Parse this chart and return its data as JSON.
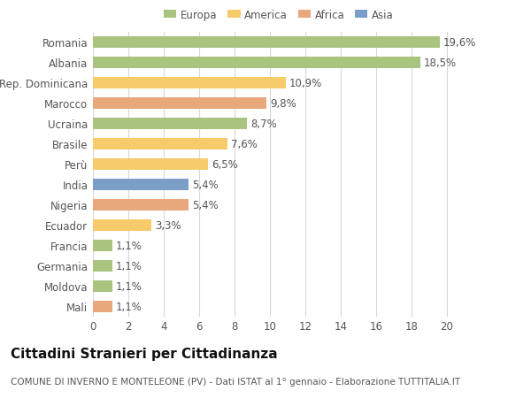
{
  "categories": [
    "Romania",
    "Albania",
    "Rep. Dominicana",
    "Marocco",
    "Ucraina",
    "Brasile",
    "Perù",
    "India",
    "Nigeria",
    "Ecuador",
    "Francia",
    "Germania",
    "Moldova",
    "Mali"
  ],
  "values": [
    19.6,
    18.5,
    10.9,
    9.8,
    8.7,
    7.6,
    6.5,
    5.4,
    5.4,
    3.3,
    1.1,
    1.1,
    1.1,
    1.1
  ],
  "labels": [
    "19,6%",
    "18,5%",
    "10,9%",
    "9,8%",
    "8,7%",
    "7,6%",
    "6,5%",
    "5,4%",
    "5,4%",
    "3,3%",
    "1,1%",
    "1,1%",
    "1,1%",
    "1,1%"
  ],
  "colors": [
    "#a8c47e",
    "#a8c47e",
    "#f7ca6a",
    "#e8a87c",
    "#a8c47e",
    "#f7ca6a",
    "#f7ca6a",
    "#7b9ec9",
    "#e8a87c",
    "#f7ca6a",
    "#a8c47e",
    "#a8c47e",
    "#a8c47e",
    "#e8a87c"
  ],
  "legend_labels": [
    "Europa",
    "America",
    "Africa",
    "Asia"
  ],
  "legend_colors": [
    "#a8c47e",
    "#f7ca6a",
    "#e8a87c",
    "#7b9ec9"
  ],
  "title": "Cittadini Stranieri per Cittadinanza",
  "subtitle": "COMUNE DI INVERNO E MONTELEONE (PV) - Dati ISTAT al 1° gennaio - Elaborazione TUTTITALIA.IT",
  "xlim": [
    0,
    21
  ],
  "xticks": [
    0,
    2,
    4,
    6,
    8,
    10,
    12,
    14,
    16,
    18,
    20
  ],
  "background_color": "#ffffff",
  "grid_color": "#d8d8d8",
  "bar_height": 0.55,
  "label_fontsize": 8.5,
  "tick_fontsize": 8.5,
  "title_fontsize": 11,
  "subtitle_fontsize": 7.5
}
